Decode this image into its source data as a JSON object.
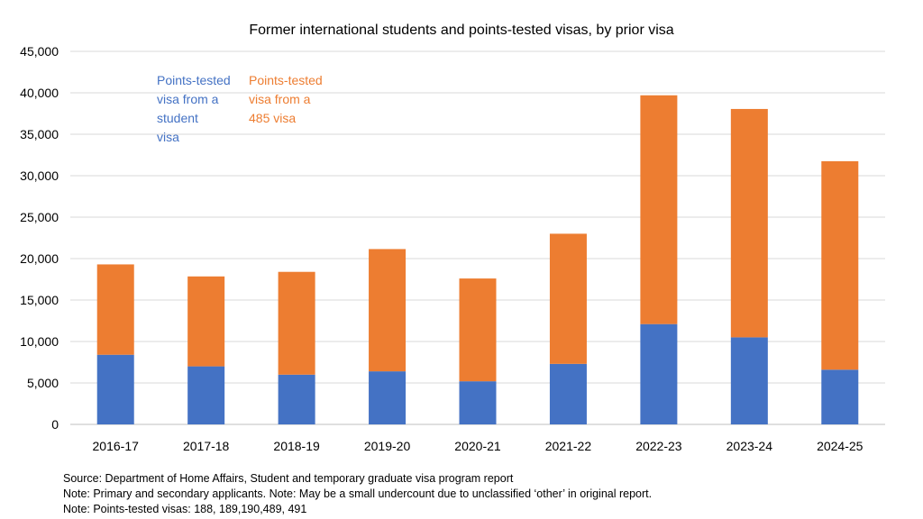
{
  "chart_data": {
    "type": "bar",
    "stacked": true,
    "title": "Former international students and points-tested visas, by prior visa",
    "categories": [
      "2016-17",
      "2017-18",
      "2018-19",
      "2019-20",
      "2020-21",
      "2021-22",
      "2022-23",
      "2023-24",
      "2024-25"
    ],
    "series": [
      {
        "name_lines": [
          "Points-tested",
          "visa  from a",
          "student",
          "visa"
        ],
        "color": "#4472C4",
        "values": [
          8400,
          7000,
          6000,
          6400,
          5200,
          7300,
          12100,
          10500,
          6600
        ]
      },
      {
        "name_lines": [
          "Points-tested",
          "visa from a",
          "485 visa"
        ],
        "color": "#ED7D31",
        "values": [
          10900,
          10850,
          12400,
          14750,
          12400,
          15700,
          27600,
          27550,
          25150
        ]
      }
    ],
    "ylim": [
      0,
      45000
    ],
    "yticks": [
      0,
      5000,
      10000,
      15000,
      20000,
      25000,
      30000,
      35000,
      40000,
      45000
    ],
    "ytick_labels": [
      "0",
      "5,000",
      "10,000",
      "15,000",
      "20,000",
      "25,000",
      "30,000",
      "35,000",
      "40,000",
      "45,000"
    ],
    "grid": true,
    "legend_placement": "top-left"
  },
  "notes": [
    "Source: Department of Home Affairs, Student and temporary graduate visa program report",
    "Note: Primary and secondary applicants. Note: May be a small undercount due to unclassified ‘other’ in original report.",
    "Note: Points-tested visas: 188, 189,190,489, 491"
  ]
}
